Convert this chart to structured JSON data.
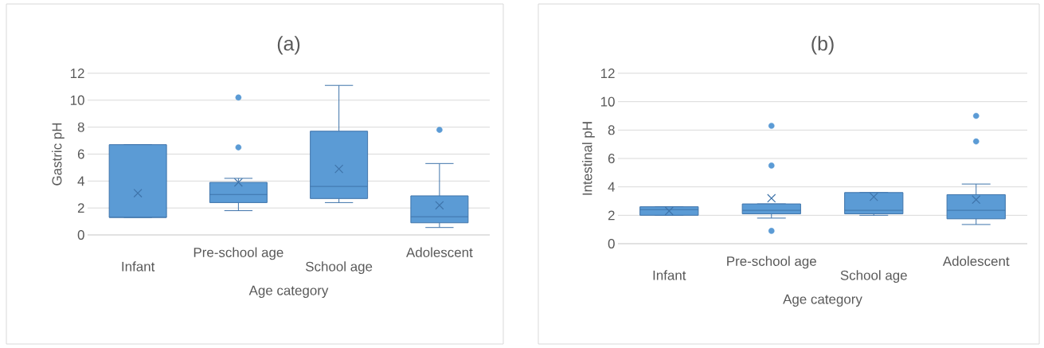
{
  "chart_data": [
    {
      "type": "box",
      "title": "(a)",
      "xlabel": "Age category",
      "ylabel": "Gastric pH",
      "categories": [
        "Infant",
        "Pre-school age",
        "School age",
        "Adolescent"
      ],
      "ylim": [
        0,
        12
      ],
      "yticks": [
        0,
        2,
        4,
        6,
        8,
        10,
        12
      ],
      "grid": "y",
      "series": [
        {
          "color": "#5b9bd5",
          "boxes": [
            {
              "low": 1.3,
              "q1": 1.3,
              "median": 1.3,
              "q3": 6.7,
              "high": 6.7,
              "mean": 3.1
            },
            {
              "low": 1.8,
              "q1": 2.4,
              "median": 3.0,
              "q3": 3.9,
              "high": 4.2,
              "mean": 3.9,
              "outliers": [
                6.5,
                10.2
              ]
            },
            {
              "low": 2.4,
              "q1": 2.7,
              "median": 3.6,
              "q3": 7.7,
              "high": 11.1,
              "mean": 4.9
            },
            {
              "low": 0.55,
              "q1": 0.9,
              "median": 1.35,
              "q3": 2.9,
              "high": 5.3,
              "mean": 2.2,
              "outliers": [
                7.8
              ]
            }
          ]
        }
      ]
    },
    {
      "type": "box",
      "title": "(b)",
      "xlabel": "Age category",
      "ylabel": "Intestinal pH",
      "categories": [
        "Infant",
        "Pre-school age",
        "School age",
        "Adolescent"
      ],
      "ylim": [
        0,
        12
      ],
      "yticks": [
        0,
        2,
        4,
        6,
        8,
        10,
        12
      ],
      "grid": "y",
      "series": [
        {
          "color": "#5b9bd5",
          "boxes": [
            {
              "low": 2.0,
              "q1": 2.0,
              "median": 2.4,
              "q3": 2.6,
              "high": 2.6,
              "mean": 2.3
            },
            {
              "low": 1.8,
              "q1": 2.1,
              "median": 2.35,
              "q3": 2.8,
              "high": 2.8,
              "mean": 3.2,
              "outliers": [
                0.9,
                5.5,
                8.3
              ]
            },
            {
              "low": 2.0,
              "q1": 2.1,
              "median": 2.35,
              "q3": 3.6,
              "high": 3.6,
              "mean": 3.3
            },
            {
              "low": 1.35,
              "q1": 1.75,
              "median": 2.35,
              "q3": 3.45,
              "high": 4.2,
              "mean": 3.1,
              "outliers": [
                7.2,
                9.0
              ]
            }
          ]
        }
      ]
    }
  ]
}
